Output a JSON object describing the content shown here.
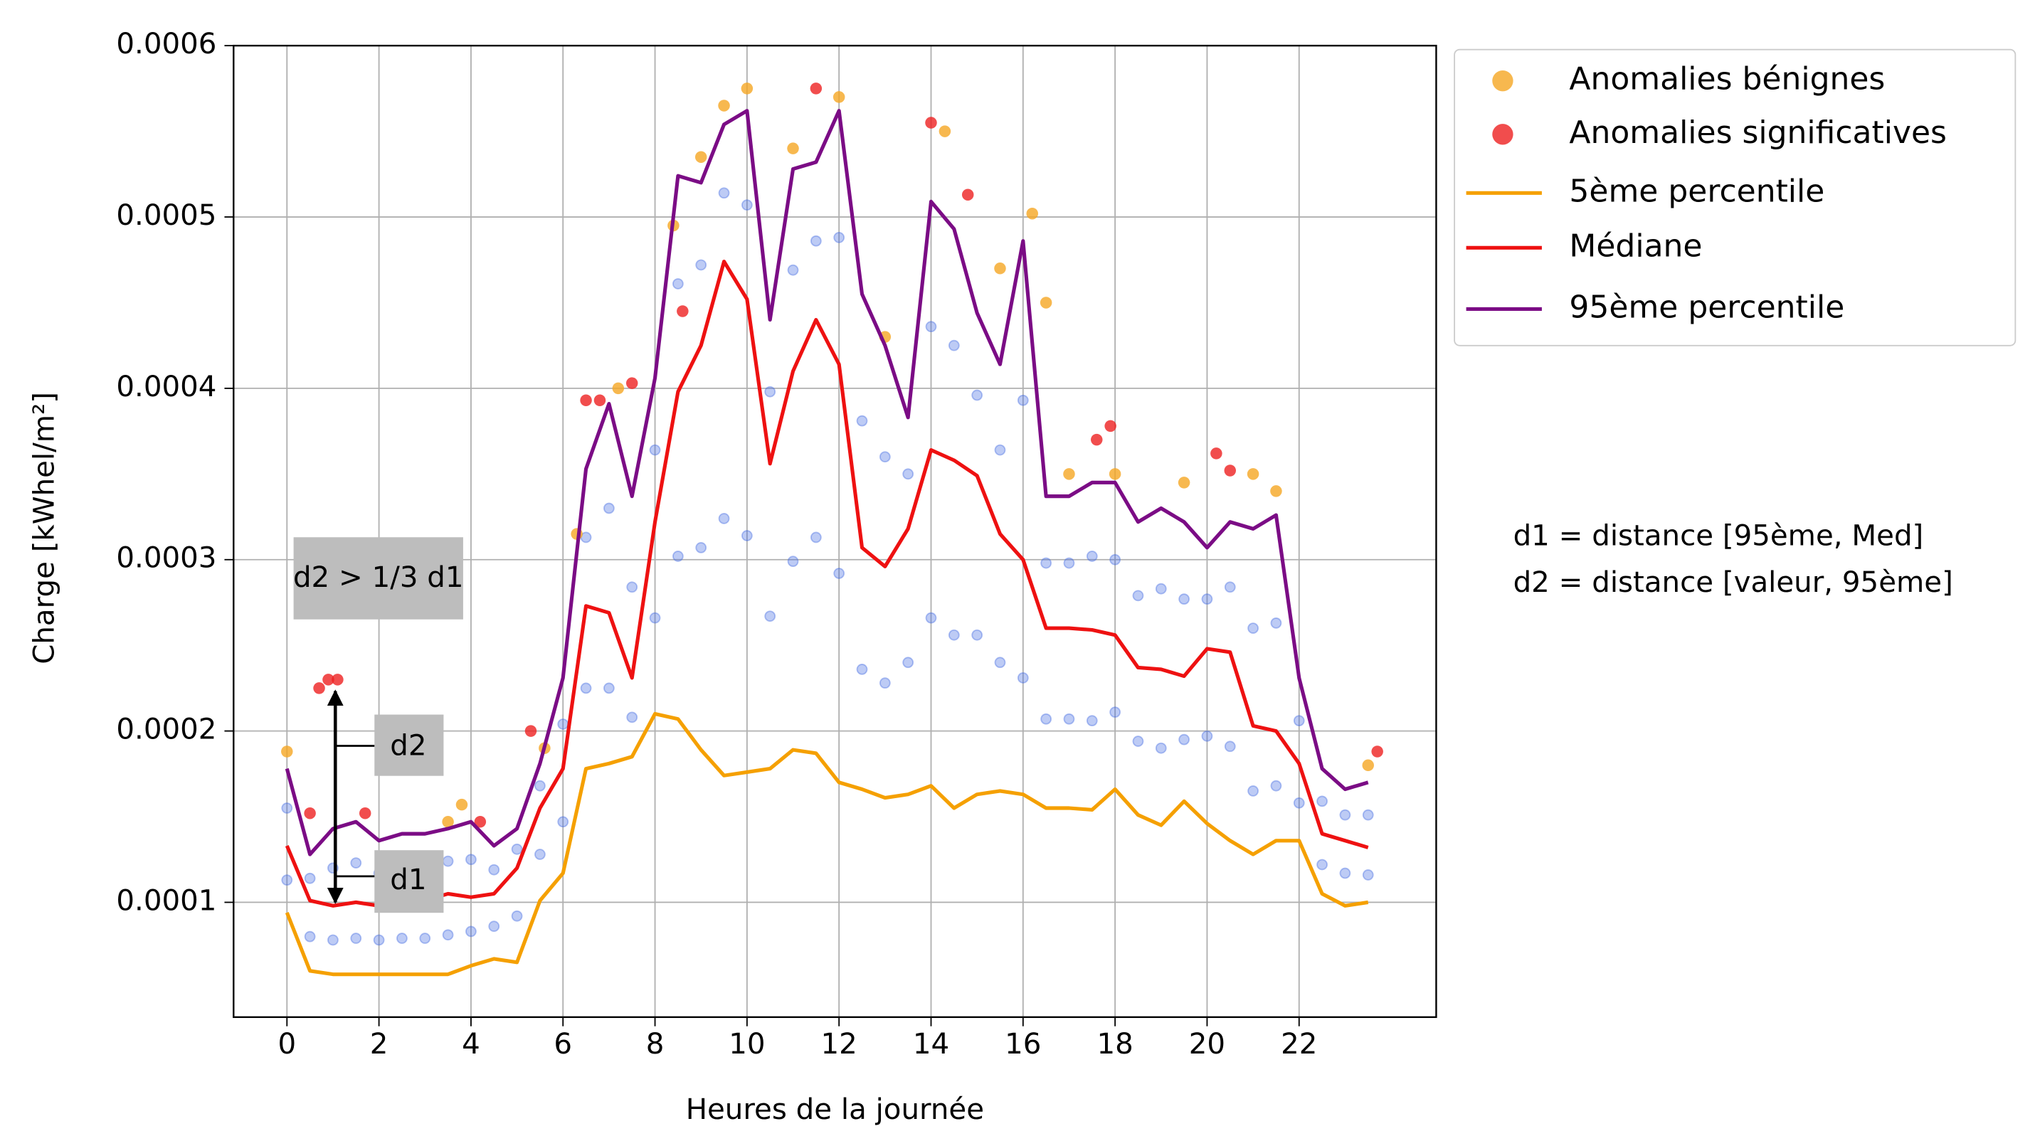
{
  "chart_data": {
    "type": "line",
    "xlabel": "Heures de la journée",
    "ylabel": "Charge [kWhel/m²]",
    "xlim": [
      -1.16,
      24.98
    ],
    "ylim": [
      3.3e-05,
      0.0006
    ],
    "xticks": [
      0,
      2,
      4,
      6,
      8,
      10,
      12,
      14,
      16,
      18,
      20,
      22
    ],
    "yticks": [
      0.0001,
      0.0002,
      0.0003,
      0.0004,
      0.0005,
      0.0006
    ],
    "grid": true,
    "legend": "outside upper right",
    "x": [
      0,
      0.5,
      1,
      1.5,
      2,
      2.5,
      3,
      3.5,
      4,
      4.5,
      5,
      5.5,
      6,
      6.5,
      7,
      7.5,
      8,
      8.5,
      9,
      9.5,
      10,
      10.5,
      11,
      11.5,
      12,
      12.5,
      13,
      13.5,
      14,
      14.5,
      15,
      15.5,
      16,
      16.5,
      17,
      17.5,
      18,
      18.5,
      19,
      19.5,
      20,
      20.5,
      21,
      21.5,
      22,
      22.5,
      23,
      23.5
    ],
    "series": [
      {
        "type": "scatter",
        "color": "#4169e1",
        "values": [
          0.000155,
          0.000114,
          0.00012,
          0.000123,
          0.000117,
          0.00012,
          0.00012,
          0.000124,
          0.000125,
          0.000119,
          0.000131,
          0.000168,
          0.000204,
          0.000313,
          0.00033,
          0.000284,
          0.000364,
          0.000461,
          0.000472,
          0.000514,
          0.000507,
          0.000398,
          0.000469,
          0.000486,
          0.000488,
          0.000381,
          0.00036,
          0.00035,
          0.000436,
          0.000425,
          0.000396,
          0.000364,
          0.000393,
          0.000298,
          0.000298,
          0.000302,
          0.0003,
          0.000279,
          0.000283,
          0.000277,
          0.000277,
          0.000284,
          0.00026,
          0.000263,
          0.000206,
          0.000159,
          0.000151,
          0.000151
        ]
      },
      {
        "type": "scatter",
        "color": "#4169e1",
        "values": [
          0.000113,
          8e-05,
          7.8e-05,
          7.9e-05,
          7.8e-05,
          7.9e-05,
          7.9e-05,
          8.1e-05,
          8.3e-05,
          8.6e-05,
          9.2e-05,
          0.000128,
          0.000147,
          0.000225,
          0.000225,
          0.000208,
          0.000266,
          0.000302,
          0.000307,
          0.000324,
          0.000314,
          0.000267,
          0.000299,
          0.000313,
          0.000292,
          0.000236,
          0.000228,
          0.00024,
          0.000266,
          0.000256,
          0.000256,
          0.00024,
          0.000231,
          0.000207,
          0.000207,
          0.000206,
          0.000211,
          0.000194,
          0.00019,
          0.000195,
          0.000197,
          0.000191,
          0.000165,
          0.000168,
          0.000158,
          0.000122,
          0.000117,
          0.000116
        ]
      },
      {
        "type": "scatter",
        "name": "Anomalies bénignes",
        "color": "#f5a623",
        "x": [
          0,
          3.5,
          3.8,
          5.6,
          6.3,
          7.2,
          8.4,
          9,
          9.5,
          10,
          11,
          12,
          13,
          14.3,
          15.5,
          16.2,
          16.5,
          17,
          18,
          19.5,
          21,
          21.5,
          23.5
        ],
        "values": [
          0.000188,
          0.000147,
          0.000157,
          0.00019,
          0.000315,
          0.0004,
          0.000495,
          0.000535,
          0.000565,
          0.000575,
          0.00054,
          0.00057,
          0.00043,
          0.00055,
          0.00047,
          0.000502,
          0.00045,
          0.00035,
          0.00035,
          0.000345,
          0.00035,
          0.00034,
          0.00018
        ]
      },
      {
        "type": "scatter",
        "name": "Anomalies significatives",
        "color": "#ee2020",
        "x": [
          0.5,
          0.7,
          0.9,
          1.1,
          1.7,
          4.2,
          5.3,
          6.5,
          6.8,
          7.5,
          8.6,
          11.5,
          14,
          14.8,
          17.6,
          17.9,
          20.2,
          20.5,
          23.7
        ],
        "values": [
          0.000152,
          0.000225,
          0.00023,
          0.00023,
          0.000152,
          0.000147,
          0.0002,
          0.000393,
          0.000393,
          0.000403,
          0.000445,
          0.000575,
          0.000555,
          0.000513,
          0.00037,
          0.000378,
          0.000362,
          0.000352,
          0.000188
        ]
      },
      {
        "type": "line",
        "name": "5ème percentile",
        "color": "#f5a000",
        "values": [
          9.4e-05,
          6e-05,
          5.8e-05,
          5.8e-05,
          5.8e-05,
          5.8e-05,
          5.8e-05,
          5.8e-05,
          6.3e-05,
          6.7e-05,
          6.5e-05,
          0.000101,
          0.000117,
          0.000178,
          0.000181,
          0.000185,
          0.00021,
          0.000207,
          0.000189,
          0.000174,
          0.000176,
          0.000178,
          0.000189,
          0.000187,
          0.00017,
          0.000166,
          0.000161,
          0.000163,
          0.000168,
          0.000155,
          0.000163,
          0.000165,
          0.000163,
          0.000155,
          0.000155,
          0.000154,
          0.000166,
          0.000151,
          0.000145,
          0.000159,
          0.000146,
          0.000136,
          0.000128,
          0.000136,
          0.000136,
          0.000105,
          9.8e-05,
          0.0001
        ]
      },
      {
        "type": "line",
        "name": "Médiane",
        "color": "#ee1111",
        "values": [
          0.000133,
          0.000101,
          9.8e-05,
          0.0001,
          9.8e-05,
          0.000101,
          0.000101,
          0.000105,
          0.000103,
          0.000105,
          0.00012,
          0.000155,
          0.000178,
          0.000273,
          0.000269,
          0.000231,
          0.000322,
          0.000398,
          0.000425,
          0.000474,
          0.000452,
          0.000356,
          0.00041,
          0.00044,
          0.000414,
          0.000307,
          0.000296,
          0.000318,
          0.000364,
          0.000358,
          0.000349,
          0.000315,
          0.0003,
          0.00026,
          0.00026,
          0.000259,
          0.000256,
          0.000237,
          0.000236,
          0.000232,
          0.000248,
          0.000246,
          0.000203,
          0.0002,
          0.000181,
          0.00014,
          0.000136,
          0.000132
        ]
      },
      {
        "type": "line",
        "name": "95ème percentile",
        "color": "#7b0c85",
        "values": [
          0.000178,
          0.000128,
          0.000143,
          0.000147,
          0.000136,
          0.00014,
          0.00014,
          0.000143,
          0.000147,
          0.000133,
          0.000143,
          0.000181,
          0.000231,
          0.000353,
          0.000391,
          0.000337,
          0.000406,
          0.000524,
          0.00052,
          0.000554,
          0.000562,
          0.00044,
          0.000528,
          0.000532,
          0.000562,
          0.000455,
          0.000425,
          0.000383,
          0.000509,
          0.000493,
          0.000444,
          0.000414,
          0.000486,
          0.000337,
          0.000337,
          0.000345,
          0.000345,
          0.000322,
          0.00033,
          0.000322,
          0.000307,
          0.000322,
          0.000318,
          0.000326,
          0.000231,
          0.000178,
          0.000166,
          0.00017
        ]
      }
    ],
    "annotations": [
      "d2 > 1/3 d1",
      "d2",
      "d1",
      "d1 = distance [95ème, Med]",
      "d2 = distance [valeur, 95ème]"
    ]
  }
}
